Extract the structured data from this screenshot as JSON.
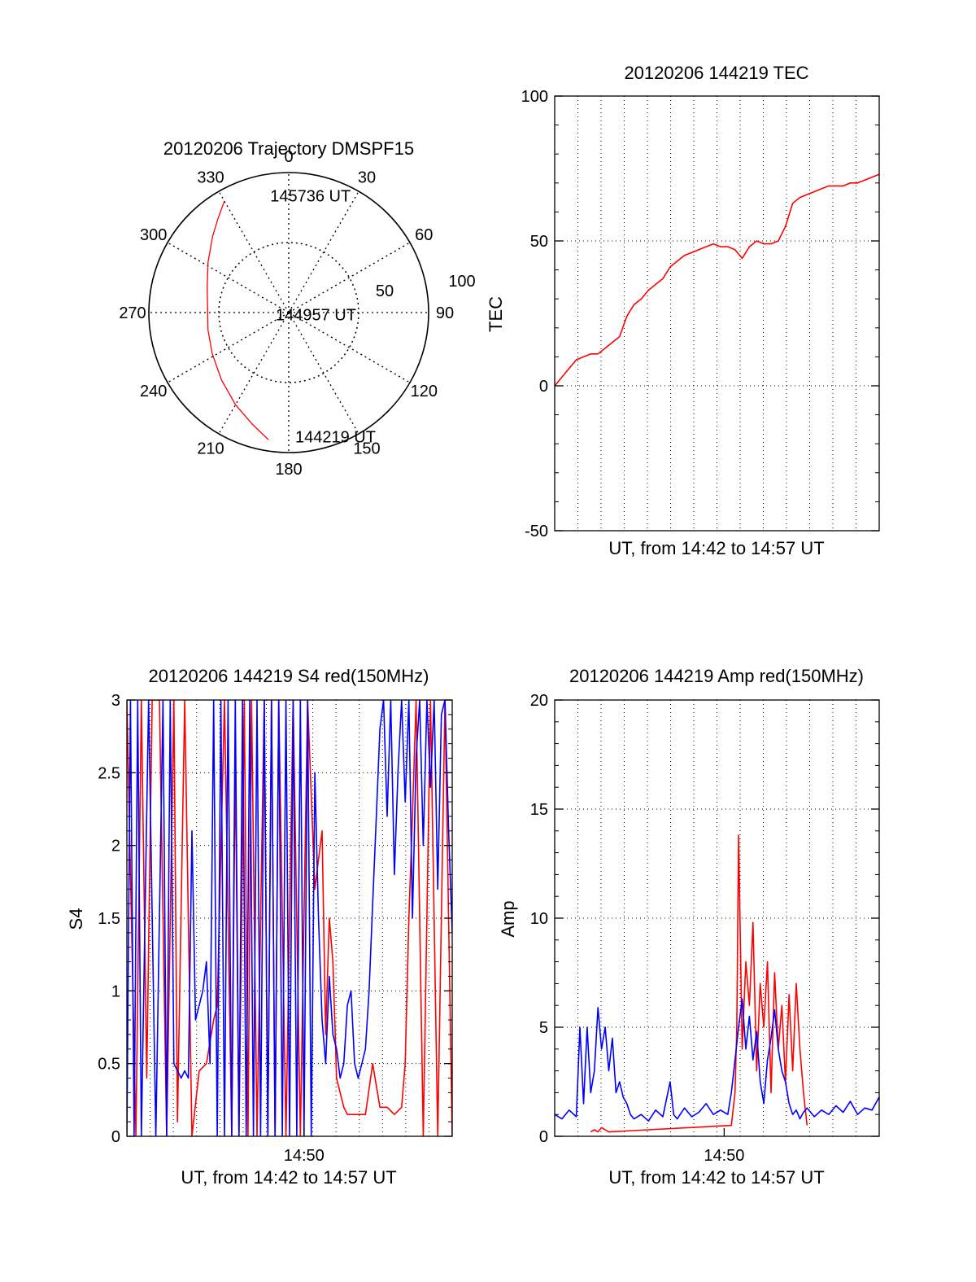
{
  "colors": {
    "red": "#ff0000",
    "blue": "#0000ff",
    "axis": "#000000",
    "grid": "#000000"
  },
  "chart_data": [
    {
      "id": "trajectory",
      "type": "polar",
      "title": "20120206 Trajectory DMSPF15",
      "azimuth_labels": [
        "0",
        "30",
        "60",
        "90",
        "120",
        "150",
        "180",
        "210",
        "240",
        "270",
        "300",
        "330"
      ],
      "azimuth_values": [
        0,
        30,
        60,
        90,
        120,
        150,
        180,
        210,
        240,
        270,
        300,
        330
      ],
      "radial_labels": [
        "50",
        "100"
      ],
      "radial_values": [
        50,
        100
      ],
      "radial_max": 100,
      "grid": true,
      "series": [
        {
          "color": "red",
          "points": [
            {
              "az": 189,
              "r": 92
            },
            {
              "az": 198,
              "r": 84
            },
            {
              "az": 210,
              "r": 76
            },
            {
              "az": 225,
              "r": 68
            },
            {
              "az": 242,
              "r": 62
            },
            {
              "az": 258,
              "r": 59
            },
            {
              "az": 272,
              "r": 58
            },
            {
              "az": 287,
              "r": 61
            },
            {
              "az": 302,
              "r": 68
            },
            {
              "az": 315,
              "r": 77
            },
            {
              "az": 323,
              "r": 84
            },
            {
              "az": 330,
              "r": 92
            }
          ]
        }
      ],
      "annotations": [
        {
          "text": "145736 UT",
          "az": 348,
          "r": 86
        },
        {
          "text": "144957 UT",
          "az": 266,
          "r": 14
        },
        {
          "text": "144219 UT",
          "az": 180,
          "r": 88
        }
      ]
    },
    {
      "id": "tec",
      "type": "line",
      "title": "20120206 144219 TEC",
      "xlabel": "UT, from 14:42 to 14:57 UT",
      "ylabel": "TEC",
      "xlim": [
        0,
        900
      ],
      "ylim": [
        -50,
        100
      ],
      "yticks": [
        -50,
        0,
        50,
        100
      ],
      "ytick_labels": [
        "-50",
        "0",
        "50",
        "100"
      ],
      "xticks": [],
      "grid": true,
      "series": [
        {
          "color": "red",
          "x": [
            0,
            20,
            40,
            60,
            80,
            100,
            120,
            140,
            160,
            180,
            200,
            220,
            240,
            260,
            280,
            300,
            320,
            340,
            360,
            380,
            400,
            420,
            440,
            460,
            480,
            500,
            520,
            540,
            560,
            580,
            600,
            620,
            640,
            660,
            680,
            700,
            720,
            740,
            760,
            780,
            800,
            820,
            840,
            860,
            880,
            900
          ],
          "y": [
            0,
            3,
            6,
            9,
            10,
            11,
            11,
            13,
            15,
            17,
            24,
            28,
            30,
            33,
            35,
            37,
            41,
            43,
            45,
            46,
            47,
            48,
            49,
            48,
            48,
            47,
            44,
            48,
            50,
            49,
            49,
            50,
            55,
            63,
            65,
            66,
            67,
            68,
            69,
            69,
            69,
            70,
            70,
            71,
            72,
            73
          ]
        }
      ]
    },
    {
      "id": "s4",
      "type": "line",
      "title": "20120206 144219 S4 red(150MHz)",
      "xlabel": "UT, from 14:42 to 14:57 UT",
      "ylabel": "S4",
      "xlim": [
        0,
        900
      ],
      "ylim": [
        0,
        3
      ],
      "yticks": [
        0,
        0.5,
        1,
        1.5,
        2,
        2.5,
        3
      ],
      "ytick_labels": [
        "0",
        "0.5",
        "1",
        "1.5",
        "2",
        "2.5",
        "3"
      ],
      "xticks": [
        490
      ],
      "xtick_labels": [
        "14:50"
      ],
      "grid": true,
      "series": [
        {
          "color": "red",
          "x": [
            0,
            25,
            40,
            55,
            70,
            90,
            110,
            130,
            140,
            160,
            180,
            200,
            220,
            240,
            250,
            270,
            290,
            300,
            310,
            325,
            335,
            345,
            360,
            380,
            390,
            400,
            410,
            420,
            440,
            460,
            480,
            500,
            520,
            540,
            550,
            560,
            570,
            575,
            580,
            590,
            600,
            610,
            620,
            640,
            660,
            680,
            700,
            720,
            740,
            760,
            770,
            780,
            790,
            800,
            820,
            840,
            860,
            880,
            900
          ],
          "y": [
            3,
            0,
            3,
            0.4,
            3,
            3,
            0,
            3,
            0.1,
            3,
            0,
            0.45,
            0.5,
            0.8,
            0.9,
            3,
            0,
            2.6,
            0,
            3,
            0,
            3,
            0,
            3,
            0,
            3,
            0,
            3,
            0,
            3,
            0,
            3,
            1.7,
            2.1,
            0.7,
            1.5,
            1.2,
            0.8,
            0.4,
            0.3,
            0.2,
            0.15,
            0.15,
            0.15,
            0.15,
            0.5,
            0.2,
            0.2,
            0.15,
            0.2,
            0.5,
            1.5,
            2.2,
            3,
            0,
            3,
            0,
            3,
            0
          ]
        },
        {
          "color": "blue",
          "x": [
            0,
            10,
            20,
            30,
            40,
            60,
            80,
            100,
            110,
            120,
            130,
            140,
            150,
            160,
            170,
            180,
            190,
            200,
            210,
            220,
            230,
            240,
            250,
            260,
            270,
            280,
            290,
            300,
            310,
            320,
            330,
            340,
            350,
            360,
            370,
            380,
            390,
            400,
            410,
            420,
            430,
            440,
            450,
            460,
            470,
            480,
            490,
            500,
            510,
            520,
            530,
            540,
            550,
            560,
            570,
            580,
            590,
            600,
            610,
            620,
            630,
            640,
            650,
            660,
            670,
            680,
            690,
            700,
            710,
            720,
            730,
            740,
            750,
            760,
            770,
            780,
            790,
            800,
            810,
            820,
            830,
            840,
            850,
            860,
            870,
            880,
            890,
            900
          ],
          "y": [
            0,
            3,
            0,
            3,
            0,
            3,
            0,
            3,
            0,
            3,
            0.5,
            0.45,
            0.4,
            0.45,
            0.4,
            2.1,
            0.8,
            0.9,
            1.0,
            1.2,
            0.5,
            3,
            0,
            3,
            0,
            3,
            0,
            3,
            0,
            3,
            0,
            3,
            0,
            3,
            0,
            3,
            0,
            3,
            0,
            3,
            0,
            3,
            0,
            3,
            0,
            3,
            0,
            3,
            0,
            2.5,
            1.5,
            0.8,
            0.5,
            1.1,
            0.7,
            0.6,
            0.4,
            0.5,
            0.9,
            1.0,
            0.5,
            0.4,
            0.5,
            0.6,
            1.0,
            1.6,
            2.2,
            2.8,
            3,
            2.2,
            3,
            1.8,
            2.5,
            3,
            2.3,
            3,
            1.5,
            2.6,
            3,
            2.0,
            3,
            2.4,
            3,
            1.7,
            2.9,
            3,
            2.1,
            1.4
          ]
        }
      ]
    },
    {
      "id": "amp",
      "type": "line",
      "title": "20120206 144219 Amp red(150MHz)",
      "xlabel": "UT, from 14:42 to 14:57 UT",
      "ylabel": "Amp",
      "xlim": [
        0,
        900
      ],
      "ylim": [
        0,
        20
      ],
      "yticks": [
        0,
        5,
        10,
        15,
        20
      ],
      "ytick_labels": [
        "0",
        "5",
        "10",
        "15",
        "20"
      ],
      "xticks": [
        470
      ],
      "xtick_labels": [
        "14:50"
      ],
      "grid": true,
      "series": [
        {
          "color": "red",
          "x": [
            100,
            110,
            120,
            130,
            140,
            150,
            490,
            500,
            505,
            510,
            520,
            530,
            540,
            550,
            560,
            570,
            580,
            590,
            600,
            610,
            620,
            630,
            640,
            650,
            660,
            670,
            680,
            690,
            700
          ],
          "y": [
            0.2,
            0.3,
            0.2,
            0.4,
            0.3,
            0.2,
            0.5,
            2,
            5,
            13.8,
            4,
            8,
            6,
            9.8,
            3,
            7,
            5,
            8,
            2,
            7.5,
            4,
            6,
            2.5,
            6.5,
            3,
            7,
            4,
            2,
            0.5
          ]
        },
        {
          "color": "blue",
          "x": [
            0,
            20,
            40,
            60,
            70,
            80,
            90,
            100,
            110,
            120,
            130,
            140,
            150,
            160,
            170,
            180,
            190,
            200,
            210,
            220,
            240,
            260,
            280,
            300,
            320,
            330,
            340,
            360,
            380,
            400,
            420,
            440,
            460,
            480,
            490,
            500,
            510,
            520,
            530,
            540,
            550,
            560,
            570,
            580,
            590,
            600,
            610,
            620,
            630,
            640,
            650,
            660,
            670,
            680,
            690,
            700,
            720,
            740,
            760,
            780,
            800,
            820,
            840,
            860,
            880,
            900
          ],
          "y": [
            1,
            0.8,
            1.2,
            0.9,
            5,
            1.5,
            5,
            2,
            3,
            5.9,
            4,
            5,
            3,
            4.5,
            2,
            2.5,
            1.8,
            1.5,
            1.0,
            0.8,
            1.0,
            0.7,
            1.2,
            0.9,
            2.5,
            1.0,
            0.8,
            1.3,
            0.9,
            1.1,
            1.5,
            1.0,
            1.2,
            1.0,
            2.0,
            3.5,
            5,
            6.3,
            4,
            5.5,
            3.5,
            4.8,
            2.5,
            1.5,
            3.5,
            4.5,
            5.8,
            4.0,
            3.0,
            2.5,
            1.5,
            1.0,
            1.2,
            0.8,
            1.1,
            1.3,
            0.9,
            1.2,
            1.0,
            1.4,
            1.1,
            1.6,
            1.0,
            1.3,
            1.2,
            1.8
          ]
        }
      ]
    }
  ]
}
